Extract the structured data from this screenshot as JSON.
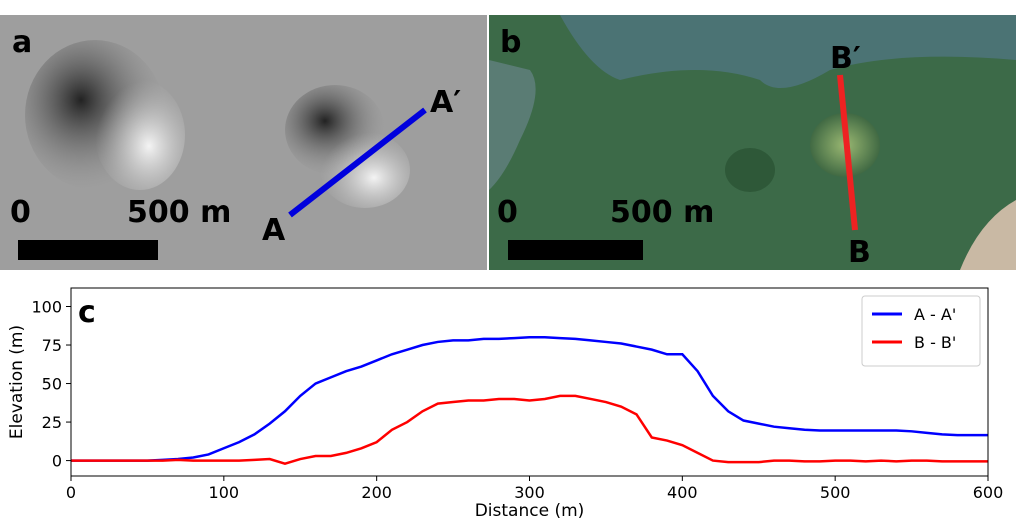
{
  "panels": [
    {
      "label": "a",
      "scale_start": "0",
      "scale_end": "500 m",
      "point_start": "A",
      "point_end": "A′"
    },
    {
      "label": "b",
      "scale_start": "0",
      "scale_end": "500 m",
      "point_start": "B",
      "point_end": "B′"
    }
  ],
  "chart_data": {
    "type": "line",
    "panel_label": "c",
    "x_label": "Distance (m)",
    "y_label": "Elevation (m)",
    "x": [
      0,
      10,
      20,
      30,
      40,
      50,
      60,
      70,
      80,
      90,
      100,
      110,
      120,
      130,
      140,
      150,
      160,
      170,
      180,
      190,
      200,
      210,
      220,
      230,
      240,
      250,
      260,
      270,
      280,
      290,
      300,
      310,
      320,
      330,
      340,
      350,
      360,
      370,
      380,
      390,
      400,
      410,
      420,
      430,
      440,
      450,
      460,
      470,
      480,
      490,
      500,
      510,
      520,
      530,
      540,
      550,
      560,
      570,
      580,
      590,
      600
    ],
    "series": [
      {
        "name": "A - A'",
        "color": "#0000ff",
        "values": [
          0,
          0,
          0,
          0,
          0,
          0,
          0.5,
          1,
          2,
          4,
          8,
          12,
          17,
          24,
          32,
          42,
          50,
          54,
          58,
          61,
          65,
          69,
          72,
          75,
          77,
          78,
          78,
          79,
          79,
          79.5,
          80,
          80,
          79.5,
          79,
          78,
          77,
          76,
          74,
          72,
          69,
          69,
          58,
          42,
          32,
          26,
          24,
          22,
          21,
          20,
          19.5,
          19.5,
          19.5,
          19.5,
          19.5,
          19.5,
          19,
          18,
          17,
          16.5,
          16.5,
          16.5
        ]
      },
      {
        "name": "B - B'",
        "color": "#ff0000",
        "values": [
          0,
          0,
          0,
          0,
          0,
          0,
          0,
          0.5,
          0,
          0,
          0,
          0,
          0.5,
          1,
          -2,
          1,
          3,
          3,
          5,
          8,
          12,
          20,
          25,
          32,
          37,
          38,
          39,
          39,
          40,
          40,
          39,
          40,
          42,
          42,
          40,
          38,
          35,
          30,
          15,
          13,
          10,
          5,
          0,
          -1,
          -1,
          -1,
          0,
          0,
          -0.5,
          -0.5,
          0,
          0,
          -0.5,
          0,
          -0.5,
          0,
          0,
          -0.5,
          -0.5,
          -0.5,
          -0.5
        ]
      }
    ],
    "xlim": [
      0,
      600
    ],
    "xticks": [
      0,
      100,
      200,
      300,
      400,
      500,
      600
    ],
    "ylim": [
      -10,
      112
    ],
    "yticks": [
      0,
      25,
      50,
      75,
      100
    ],
    "legend": "upper right",
    "grid": false
  }
}
